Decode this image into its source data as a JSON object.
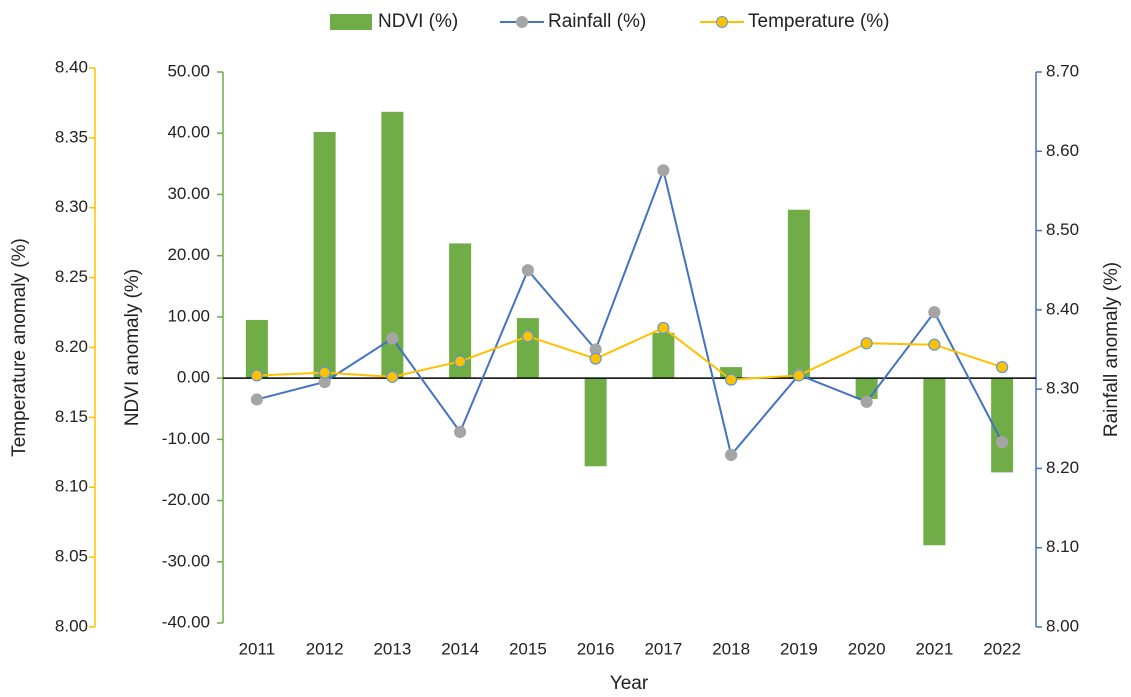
{
  "chart_data": {
    "type": "bar-line",
    "x_label": "Year",
    "categories": [
      "2011",
      "2012",
      "2013",
      "2014",
      "2015",
      "2016",
      "2017",
      "2018",
      "2019",
      "2020",
      "2021",
      "2022"
    ],
    "series": [
      {
        "name": "NDVI (%)",
        "type": "bar",
        "axis": "y",
        "color": "#70ad47",
        "values": [
          9.5,
          40.2,
          43.5,
          22.0,
          9.8,
          -14.4,
          7.4,
          1.8,
          27.5,
          -3.4,
          -27.3,
          -15.4
        ]
      },
      {
        "name": "Rainfall (%)",
        "type": "line",
        "axis": "y2",
        "color": "#4472c4",
        "marker_color": "#a5a5a5",
        "values": [
          8.287,
          8.309,
          8.364,
          8.246,
          8.45,
          8.35,
          8.576,
          8.217,
          8.318,
          8.284,
          8.397,
          8.233
        ]
      },
      {
        "name": "Temperature (%)",
        "type": "line",
        "axis": "y3",
        "color": "#ffc000",
        "marker_color": "#ffc000",
        "values": [
          8.18,
          8.182,
          8.179,
          8.19,
          8.208,
          8.192,
          8.214,
          8.177,
          8.18,
          8.203,
          8.202,
          8.186
        ]
      }
    ],
    "y_label": "NDVI anomaly (%)",
    "ylim": [
      -40,
      50
    ],
    "yticks": [
      {
        "value": -40,
        "label": "-40.00"
      },
      {
        "value": -30,
        "label": "-30.00"
      },
      {
        "value": -20,
        "label": "-20.00"
      },
      {
        "value": -10,
        "label": "-10.00"
      },
      {
        "value": 0,
        "label": "0.00"
      },
      {
        "value": 10,
        "label": "10.00"
      },
      {
        "value": 20,
        "label": "20.00"
      },
      {
        "value": 30,
        "label": "30.00"
      },
      {
        "value": 40,
        "label": "40.00"
      },
      {
        "value": 50,
        "label": "50.00"
      }
    ],
    "y2_label": "Rainfall anomaly (%)",
    "y2lim": [
      8.0,
      8.7
    ],
    "y2ticks": [
      {
        "value": 8.0,
        "label": "8.00"
      },
      {
        "value": 8.1,
        "label": "8.10"
      },
      {
        "value": 8.2,
        "label": "8.20"
      },
      {
        "value": 8.3,
        "label": "8.30"
      },
      {
        "value": 8.4,
        "label": "8.40"
      },
      {
        "value": 8.5,
        "label": "8.50"
      },
      {
        "value": 8.6,
        "label": "8.60"
      },
      {
        "value": 8.7,
        "label": "8.70"
      }
    ],
    "y3_label": "Temperature anomaly (%)",
    "y3lim": [
      8.0,
      8.4
    ],
    "y3ticks": [
      {
        "value": 8.0,
        "label": "8.00"
      },
      {
        "value": 8.05,
        "label": "8.05"
      },
      {
        "value": 8.1,
        "label": "8.10"
      },
      {
        "value": 8.15,
        "label": "8.15"
      },
      {
        "value": 8.2,
        "label": "8.20"
      },
      {
        "value": 8.25,
        "label": "8.25"
      },
      {
        "value": 8.3,
        "label": "8.30"
      },
      {
        "value": 8.35,
        "label": "8.35"
      },
      {
        "value": 8.4,
        "label": "8.40"
      }
    ],
    "legend": "top"
  }
}
